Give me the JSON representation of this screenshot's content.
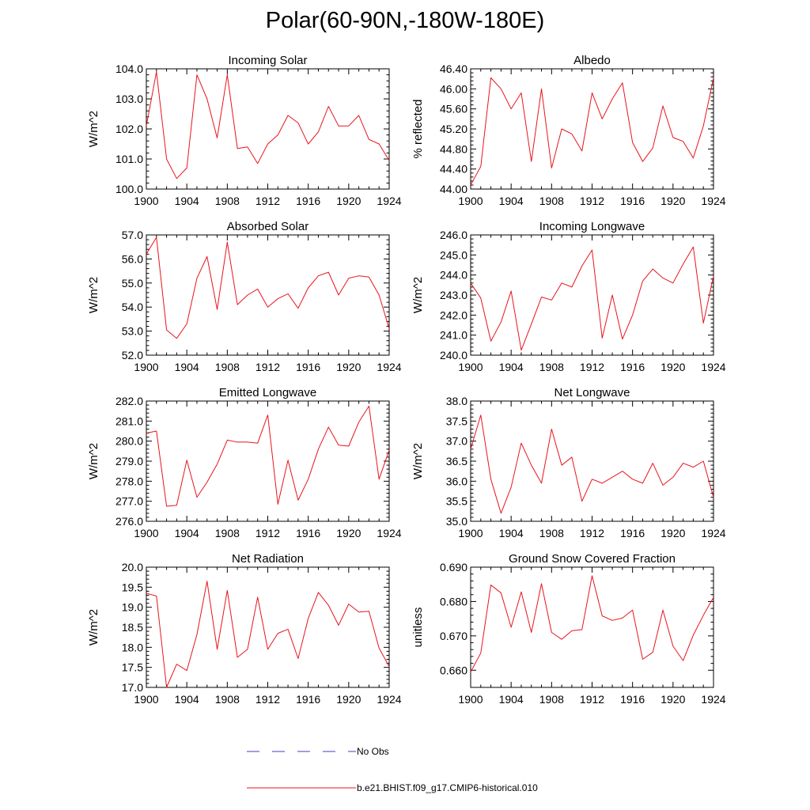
{
  "title": "Polar(60-90N,-180W-180E)",
  "colors": {
    "model": "#e8141c",
    "obs": "#3c3ccc",
    "axis": "#000000"
  },
  "legend": {
    "obs_label": "No Obs",
    "model_label": "b.e21.BHIST.f09_g17.CMIP6-historical.010"
  },
  "chart_data": [
    {
      "type": "line",
      "title": "Incoming Solar",
      "xlabel": "",
      "ylabel": "W/m^2",
      "xlim": [
        1900,
        1924
      ],
      "ylim": [
        100.0,
        104.0
      ],
      "xticks": [
        1900,
        1904,
        1908,
        1912,
        1916,
        1920,
        1924
      ],
      "yticks": [
        100.0,
        101.0,
        102.0,
        103.0,
        104.0
      ],
      "ydecimals": 1,
      "x": [
        1900,
        1901,
        1902,
        1903,
        1904,
        1905,
        1906,
        1907,
        1908,
        1909,
        1910,
        1911,
        1912,
        1913,
        1914,
        1915,
        1916,
        1917,
        1918,
        1919,
        1920,
        1921,
        1922,
        1923,
        1924
      ],
      "series": [
        {
          "values": [
            102.1,
            103.9,
            101.0,
            100.35,
            100.7,
            103.8,
            103.0,
            101.7,
            103.8,
            101.35,
            101.4,
            100.85,
            101.5,
            101.8,
            102.45,
            102.2,
            101.5,
            101.9,
            102.75,
            102.1,
            102.1,
            102.45,
            101.65,
            101.5,
            100.95
          ]
        }
      ]
    },
    {
      "type": "line",
      "title": "Albedo",
      "xlabel": "",
      "ylabel": "% reflected",
      "xlim": [
        1900,
        1924
      ],
      "ylim": [
        44.0,
        46.4
      ],
      "xticks": [
        1900,
        1904,
        1908,
        1912,
        1916,
        1920,
        1924
      ],
      "yticks": [
        44.0,
        44.4,
        44.8,
        45.2,
        45.6,
        46.0,
        46.4
      ],
      "ydecimals": 2,
      "x": [
        1900,
        1901,
        1902,
        1903,
        1904,
        1905,
        1906,
        1907,
        1908,
        1909,
        1910,
        1911,
        1912,
        1913,
        1914,
        1915,
        1916,
        1917,
        1918,
        1919,
        1920,
        1921,
        1922,
        1923,
        1924
      ],
      "series": [
        {
          "values": [
            44.08,
            44.45,
            46.22,
            46.0,
            45.6,
            45.92,
            44.55,
            46.0,
            44.42,
            45.2,
            45.1,
            44.76,
            45.92,
            45.4,
            45.8,
            46.12,
            44.93,
            44.55,
            44.82,
            45.66,
            45.03,
            44.95,
            44.62,
            45.26,
            46.22
          ]
        }
      ]
    },
    {
      "type": "line",
      "title": "Absorbed Solar",
      "xlabel": "",
      "ylabel": "W/m^2",
      "xlim": [
        1900,
        1924
      ],
      "ylim": [
        52.0,
        57.0
      ],
      "xticks": [
        1900,
        1904,
        1908,
        1912,
        1916,
        1920,
        1924
      ],
      "yticks": [
        52.0,
        53.0,
        54.0,
        55.0,
        56.0,
        57.0
      ],
      "ydecimals": 1,
      "x": [
        1900,
        1901,
        1902,
        1903,
        1904,
        1905,
        1906,
        1907,
        1908,
        1909,
        1910,
        1911,
        1912,
        1913,
        1914,
        1915,
        1916,
        1917,
        1918,
        1919,
        1920,
        1921,
        1922,
        1923,
        1924
      ],
      "series": [
        {
          "values": [
            56.2,
            56.9,
            53.05,
            52.7,
            53.3,
            55.2,
            56.1,
            53.9,
            56.7,
            54.1,
            54.5,
            54.75,
            54.0,
            54.35,
            54.55,
            53.95,
            54.8,
            55.3,
            55.45,
            54.5,
            55.2,
            55.3,
            55.25,
            54.5,
            53.1
          ]
        }
      ]
    },
    {
      "type": "line",
      "title": "Incoming Longwave",
      "xlabel": "",
      "ylabel": "W/m^2",
      "xlim": [
        1900,
        1924
      ],
      "ylim": [
        240.0,
        246.0
      ],
      "xticks": [
        1900,
        1904,
        1908,
        1912,
        1916,
        1920,
        1924
      ],
      "yticks": [
        240.0,
        241.0,
        242.0,
        243.0,
        244.0,
        245.0,
        246.0
      ],
      "ydecimals": 1,
      "x": [
        1900,
        1901,
        1902,
        1903,
        1904,
        1905,
        1906,
        1907,
        1908,
        1909,
        1910,
        1911,
        1912,
        1913,
        1914,
        1915,
        1916,
        1917,
        1918,
        1919,
        1920,
        1921,
        1922,
        1923,
        1924
      ],
      "series": [
        {
          "values": [
            243.6,
            242.85,
            240.7,
            241.65,
            243.2,
            240.25,
            241.55,
            242.9,
            242.75,
            243.6,
            243.4,
            244.45,
            245.25,
            240.85,
            243.0,
            240.8,
            242.0,
            243.7,
            244.3,
            243.85,
            243.6,
            244.55,
            245.4,
            241.6,
            243.95
          ]
        }
      ]
    },
    {
      "type": "line",
      "title": "Emitted Longwave",
      "xlabel": "",
      "ylabel": "W/m^2",
      "xlim": [
        1900,
        1924
      ],
      "ylim": [
        276.0,
        282.0
      ],
      "xticks": [
        1900,
        1904,
        1908,
        1912,
        1916,
        1920,
        1924
      ],
      "yticks": [
        276.0,
        277.0,
        278.0,
        279.0,
        280.0,
        281.0,
        282.0
      ],
      "ydecimals": 1,
      "x": [
        1900,
        1901,
        1902,
        1903,
        1904,
        1905,
        1906,
        1907,
        1908,
        1909,
        1910,
        1911,
        1912,
        1913,
        1914,
        1915,
        1916,
        1917,
        1918,
        1919,
        1920,
        1921,
        1922,
        1923,
        1924
      ],
      "series": [
        {
          "values": [
            280.4,
            280.5,
            276.75,
            276.8,
            279.05,
            277.2,
            277.95,
            278.85,
            280.05,
            279.95,
            279.95,
            279.9,
            281.3,
            276.85,
            279.05,
            277.05,
            278.1,
            279.6,
            280.7,
            279.8,
            279.75,
            280.95,
            281.75,
            278.1,
            279.55
          ]
        }
      ]
    },
    {
      "type": "line",
      "title": "Net Longwave",
      "xlabel": "",
      "ylabel": "W/m^2",
      "xlim": [
        1900,
        1924
      ],
      "ylim": [
        35.0,
        38.0
      ],
      "xticks": [
        1900,
        1904,
        1908,
        1912,
        1916,
        1920,
        1924
      ],
      "yticks": [
        35.0,
        35.5,
        36.0,
        36.5,
        37.0,
        37.5,
        38.0
      ],
      "ydecimals": 1,
      "x": [
        1900,
        1901,
        1902,
        1903,
        1904,
        1905,
        1906,
        1907,
        1908,
        1909,
        1910,
        1911,
        1912,
        1913,
        1914,
        1915,
        1916,
        1917,
        1918,
        1919,
        1920,
        1921,
        1922,
        1923,
        1924
      ],
      "series": [
        {
          "values": [
            36.8,
            37.65,
            36.05,
            35.2,
            35.85,
            36.95,
            36.4,
            35.95,
            37.3,
            36.4,
            36.6,
            35.5,
            36.05,
            35.95,
            36.1,
            36.25,
            36.05,
            35.95,
            36.45,
            35.9,
            36.1,
            36.45,
            36.35,
            36.5,
            35.6
          ]
        }
      ]
    },
    {
      "type": "line",
      "title": "Net Radiation",
      "xlabel": "",
      "ylabel": "W/m^2",
      "xlim": [
        1900,
        1924
      ],
      "ylim": [
        17.0,
        20.0
      ],
      "xticks": [
        1900,
        1904,
        1908,
        1912,
        1916,
        1920,
        1924
      ],
      "yticks": [
        17.0,
        17.5,
        18.0,
        18.5,
        19.0,
        19.5,
        20.0
      ],
      "ydecimals": 1,
      "x": [
        1900,
        1901,
        1902,
        1903,
        1904,
        1905,
        1906,
        1907,
        1908,
        1909,
        1910,
        1911,
        1912,
        1913,
        1914,
        1915,
        1916,
        1917,
        1918,
        1919,
        1920,
        1921,
        1922,
        1923,
        1924
      ],
      "series": [
        {
          "values": [
            19.35,
            19.28,
            17.0,
            17.58,
            17.42,
            18.32,
            19.65,
            17.95,
            19.42,
            17.75,
            17.95,
            19.25,
            17.95,
            18.35,
            18.45,
            17.72,
            18.72,
            19.37,
            19.05,
            18.55,
            19.08,
            18.88,
            18.9,
            17.98,
            17.52
          ]
        }
      ]
    },
    {
      "type": "line",
      "title": "Ground Snow Covered Fraction",
      "xlabel": "",
      "ylabel": "unitless",
      "xlim": [
        1900,
        1924
      ],
      "ylim": [
        0.655,
        0.69
      ],
      "xticks": [
        1900,
        1904,
        1908,
        1912,
        1916,
        1920,
        1924
      ],
      "yticks": [
        0.66,
        0.67,
        0.68,
        0.69
      ],
      "ydecimals": 3,
      "x": [
        1900,
        1901,
        1902,
        1903,
        1904,
        1905,
        1906,
        1907,
        1908,
        1909,
        1910,
        1911,
        1912,
        1913,
        1914,
        1915,
        1916,
        1917,
        1918,
        1919,
        1920,
        1921,
        1922,
        1923,
        1924
      ],
      "series": [
        {
          "values": [
            0.6595,
            0.665,
            0.6848,
            0.6825,
            0.6725,
            0.6828,
            0.671,
            0.6852,
            0.671,
            0.669,
            0.6715,
            0.6718,
            0.6875,
            0.6758,
            0.6745,
            0.6752,
            0.6775,
            0.6632,
            0.6652,
            0.6775,
            0.667,
            0.6628,
            0.6702,
            0.676,
            0.6812
          ]
        }
      ]
    }
  ]
}
